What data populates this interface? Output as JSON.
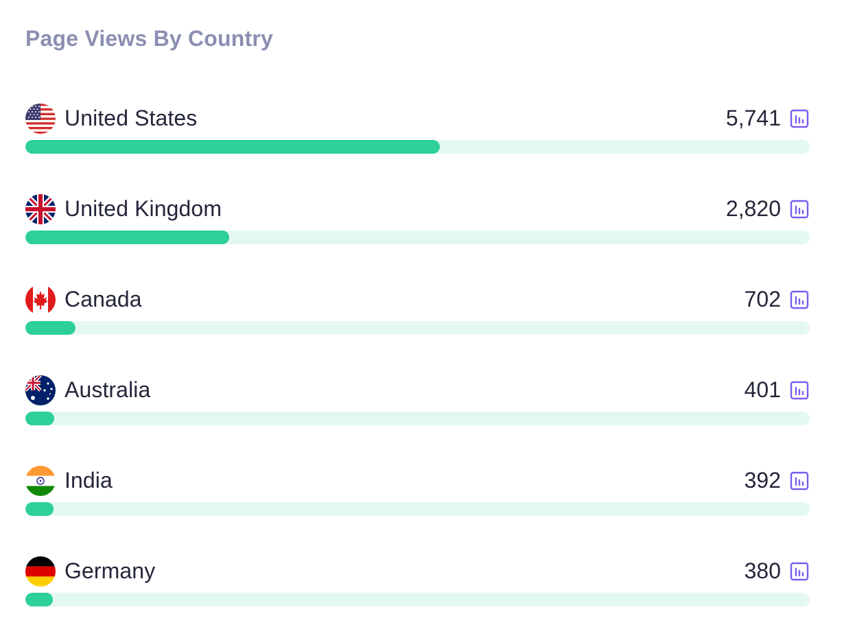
{
  "card": {
    "title": "Page Views By Country"
  },
  "colors": {
    "title": "#8b8fb1",
    "text": "#24263a",
    "bar_fill": "#2dcf9a",
    "bar_track": "#e4f8f2",
    "icon_accent": "#7b5cf0"
  },
  "rows": [
    {
      "country": "United States",
      "count": "5,741",
      "fraction": 0.528,
      "flag_icon": "us-flag-icon",
      "stats_icon": "bar-chart-icon"
    },
    {
      "country": "United Kingdom",
      "count": "2,820",
      "fraction": 0.26,
      "flag_icon": "uk-flag-icon",
      "stats_icon": "bar-chart-icon"
    },
    {
      "country": "Canada",
      "count": "702",
      "fraction": 0.064,
      "flag_icon": "canada-flag-icon",
      "stats_icon": "bar-chart-icon"
    },
    {
      "country": "Australia",
      "count": "401",
      "fraction": 0.037,
      "flag_icon": "australia-flag-icon",
      "stats_icon": "bar-chart-icon"
    },
    {
      "country": "India",
      "count": "392",
      "fraction": 0.036,
      "flag_icon": "india-flag-icon",
      "stats_icon": "bar-chart-icon"
    },
    {
      "country": "Germany",
      "count": "380",
      "fraction": 0.035,
      "flag_icon": "germany-flag-icon",
      "stats_icon": "bar-chart-icon"
    }
  ]
}
